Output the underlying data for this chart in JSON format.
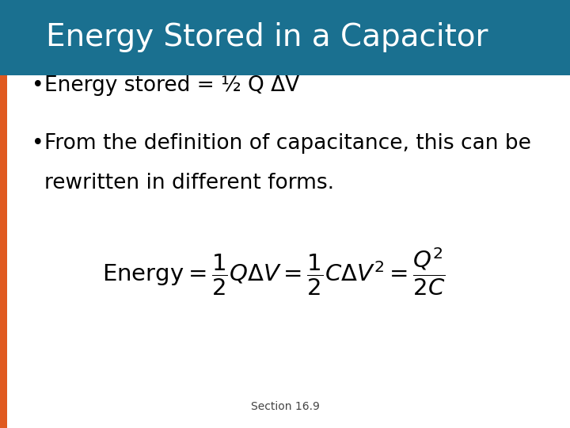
{
  "title": "Energy Stored in a Capacitor",
  "title_bg_color": "#1a7090",
  "title_text_color": "#ffffff",
  "body_bg_color": "#ffffff",
  "left_bar_color": "#e05a20",
  "bullet1": "Energy stored = ½ Q ΔV",
  "bullet2_line1": "From the definition of capacitance, this can be",
  "bullet2_line2": "rewritten in different forms.",
  "formula": "$\\mathrm{Energy} = \\dfrac{1}{2}Q\\Delta V = \\dfrac{1}{2}C\\Delta V^2 = \\dfrac{Q^2}{2C}$",
  "footer": "Section 16.9",
  "title_fontsize": 28,
  "bullet_fontsize": 19,
  "formula_fontsize": 21,
  "footer_fontsize": 10
}
